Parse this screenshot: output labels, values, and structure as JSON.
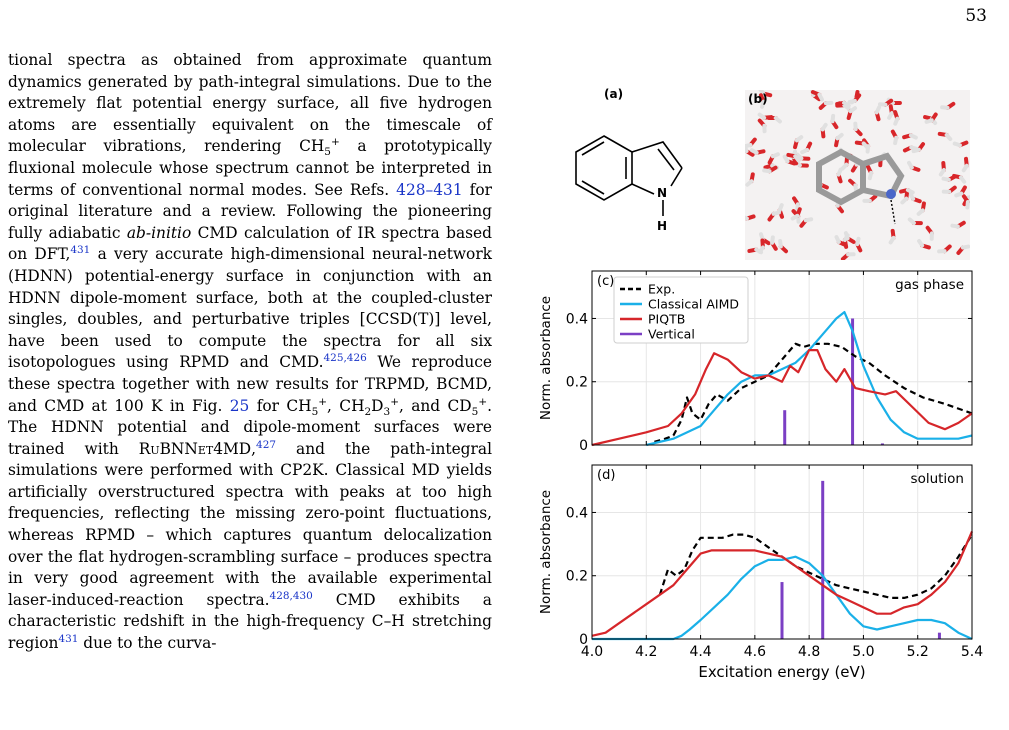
{
  "page_number": "53",
  "text": {
    "p1": "tional spectra as obtained from approximate quantum dynamics generated by path-integral simulations. Due to the extremely flat potential energy surface, all five hydrogen atoms are essentially equivalent on the timescale of molecular vibrations, rendering CH",
    "p1_sub": "5",
    "p1_sup": "+",
    "p2": " a prototypically fluxional molecule whose spectrum cannot be interpreted in terms of conventional normal modes. See Refs. ",
    "ref_a": "428–431",
    "p3": " for original literature and a review. Following the pioneering fully adiabatic ",
    "p3_italic": "ab-initio",
    "p4": " CMD calculation of IR spectra based on DFT,",
    "ref_b": "431",
    "p5": " a very accurate high-dimensional neural-network (HDNN) potential-energy surface in conjunction with an HDNN dipole-moment surface, both at the coupled-cluster singles, doubles, and perturbative triples [CCSD(T)] level, have been used to compute the spectra for all six isotopologues using RPMD and CMD.",
    "ref_c": "425,426",
    "p6": " We reproduce these spectra together with new results for TRPMD, BCMD, and CMD at 100 K in Fig. ",
    "ref_d": "25",
    "p7": " for CH",
    "p7_sub": "5",
    "p7_sup": "+",
    "p7b": ", CH",
    "p7b_sub1": "2",
    "p7b_mid": "D",
    "p7b_sub2": "3",
    "p7b_sup": "+",
    "p7c": ", and CD",
    "p7c_sub": "5",
    "p7c_sup": "+",
    "p8": ". The HDNN potential and dipole-moment surfaces were trained with ",
    "p8_sc": "RuBNNet4MD",
    "ref_e": "427",
    "p9": " and the path-integral simulations were performed with CP2K. Classical MD yields artificially overstructured spectra with peaks at too high frequencies, reflecting the missing zero-point fluctuations, whereas RPMD – which captures quantum delocalization over the flat hydrogen-scrambling surface – produces spectra in very good agreement with the available experimental laser-induced-reaction spectra.",
    "ref_f": "428,430",
    "p10": " CMD exhibits a characteristic redshift in the high-frequency C–H stretching region",
    "ref_g": "431",
    "p11": " due to the curva-"
  },
  "figure": {
    "panel_a_label": "(a)",
    "panel_b_label": "(b)",
    "atom_n": "N",
    "atom_h": "H"
  },
  "chart_data": [
    {
      "type": "line",
      "panel_label": "(c)",
      "annotation": "gas phase",
      "ylabel": "Norm. absorbance",
      "xlim": [
        4.0,
        5.4
      ],
      "ylim": [
        0,
        0.55
      ],
      "yticks": [
        "0",
        "0.2",
        "0.4"
      ],
      "grid": true,
      "legend_position": "top-left",
      "series": [
        {
          "name": "Exp.",
          "color": "#000000",
          "style": "dashed",
          "x": [
            4.23,
            4.27,
            4.3,
            4.33,
            4.35,
            4.37,
            4.4,
            4.43,
            4.46,
            4.5,
            4.55,
            4.6,
            4.65,
            4.7,
            4.73,
            4.75,
            4.78,
            4.82,
            4.87,
            4.92,
            4.97,
            5.02,
            5.08,
            5.15,
            5.22,
            5.3,
            5.4
          ],
          "y": [
            0.01,
            0.02,
            0.03,
            0.08,
            0.15,
            0.1,
            0.08,
            0.13,
            0.16,
            0.14,
            0.18,
            0.2,
            0.22,
            0.27,
            0.3,
            0.32,
            0.31,
            0.32,
            0.32,
            0.31,
            0.28,
            0.26,
            0.22,
            0.18,
            0.15,
            0.13,
            0.1
          ]
        },
        {
          "name": "Classical AIMD",
          "color": "#1ab0e8",
          "style": "solid",
          "x": [
            4.2,
            4.3,
            4.4,
            4.45,
            4.5,
            4.55,
            4.6,
            4.65,
            4.7,
            4.75,
            4.8,
            4.85,
            4.88,
            4.9,
            4.93,
            4.96,
            5.0,
            5.05,
            5.1,
            5.15,
            5.2,
            5.25,
            5.3,
            5.35,
            5.4
          ],
          "y": [
            0.0,
            0.02,
            0.06,
            0.11,
            0.16,
            0.2,
            0.22,
            0.22,
            0.24,
            0.26,
            0.3,
            0.35,
            0.38,
            0.4,
            0.42,
            0.36,
            0.25,
            0.15,
            0.08,
            0.04,
            0.02,
            0.02,
            0.02,
            0.02,
            0.03
          ]
        },
        {
          "name": "PIQTB",
          "color": "#d6262a",
          "style": "solid",
          "x": [
            4.0,
            4.1,
            4.2,
            4.28,
            4.33,
            4.38,
            4.42,
            4.45,
            4.5,
            4.55,
            4.6,
            4.65,
            4.7,
            4.73,
            4.76,
            4.8,
            4.83,
            4.86,
            4.9,
            4.93,
            4.97,
            5.02,
            5.08,
            5.12,
            5.18,
            5.24,
            5.3,
            5.35,
            5.4
          ],
          "y": [
            0.0,
            0.02,
            0.04,
            0.06,
            0.1,
            0.16,
            0.24,
            0.29,
            0.27,
            0.23,
            0.21,
            0.22,
            0.2,
            0.25,
            0.23,
            0.3,
            0.3,
            0.24,
            0.2,
            0.24,
            0.18,
            0.17,
            0.16,
            0.17,
            0.12,
            0.07,
            0.05,
            0.07,
            0.1
          ]
        }
      ],
      "verticals": {
        "name": "Vertical",
        "color": "#7b3fc4",
        "x": [
          4.71,
          4.96,
          5.07
        ],
        "y": [
          0.11,
          0.4,
          0.005
        ]
      }
    },
    {
      "type": "line",
      "panel_label": "(d)",
      "annotation": "solution",
      "ylabel": "Norm. absorbance",
      "xlabel": "Excitation energy (eV)",
      "xlim": [
        4.0,
        5.4
      ],
      "ylim": [
        0,
        0.55
      ],
      "xticks": [
        "4.0",
        "4.2",
        "4.4",
        "4.6",
        "4.8",
        "5.0",
        "5.2",
        "5.4"
      ],
      "yticks": [
        "0",
        "0.2",
        "0.4"
      ],
      "grid": true,
      "series": [
        {
          "name": "Exp.",
          "color": "#000000",
          "style": "dashed",
          "x": [
            4.25,
            4.28,
            4.31,
            4.34,
            4.37,
            4.4,
            4.44,
            4.48,
            4.52,
            4.56,
            4.6,
            4.65,
            4.7,
            4.75,
            4.8,
            4.85,
            4.9,
            4.95,
            5.0,
            5.05,
            5.1,
            5.15,
            5.2,
            5.25,
            5.3,
            5.35,
            5.4
          ],
          "y": [
            0.14,
            0.22,
            0.2,
            0.22,
            0.28,
            0.32,
            0.32,
            0.32,
            0.33,
            0.33,
            0.32,
            0.29,
            0.26,
            0.23,
            0.21,
            0.19,
            0.17,
            0.16,
            0.15,
            0.14,
            0.13,
            0.13,
            0.14,
            0.16,
            0.2,
            0.26,
            0.33
          ]
        },
        {
          "name": "Classical AIMD",
          "color": "#1ab0e8",
          "style": "solid",
          "x": [
            4.0,
            4.2,
            4.3,
            4.33,
            4.36,
            4.4,
            4.45,
            4.5,
            4.55,
            4.6,
            4.65,
            4.7,
            4.75,
            4.8,
            4.85,
            4.9,
            4.95,
            5.0,
            5.05,
            5.1,
            5.15,
            5.2,
            5.25,
            5.3,
            5.35,
            5.4
          ],
          "y": [
            0.0,
            0.0,
            0.0,
            0.01,
            0.03,
            0.06,
            0.1,
            0.14,
            0.19,
            0.23,
            0.25,
            0.25,
            0.26,
            0.24,
            0.2,
            0.14,
            0.08,
            0.04,
            0.03,
            0.04,
            0.05,
            0.06,
            0.06,
            0.05,
            0.02,
            0.0
          ]
        },
        {
          "name": "PIQTB",
          "color": "#d6262a",
          "style": "solid",
          "x": [
            4.0,
            4.05,
            4.1,
            4.15,
            4.2,
            4.25,
            4.3,
            4.35,
            4.4,
            4.44,
            4.48,
            4.52,
            4.56,
            4.6,
            4.65,
            4.7,
            4.75,
            4.8,
            4.85,
            4.9,
            4.95,
            5.0,
            5.05,
            5.1,
            5.15,
            5.2,
            5.25,
            5.3,
            5.35,
            5.4
          ],
          "y": [
            0.01,
            0.02,
            0.05,
            0.08,
            0.11,
            0.14,
            0.17,
            0.22,
            0.27,
            0.28,
            0.28,
            0.28,
            0.28,
            0.28,
            0.27,
            0.26,
            0.23,
            0.2,
            0.17,
            0.14,
            0.12,
            0.1,
            0.08,
            0.08,
            0.1,
            0.11,
            0.14,
            0.18,
            0.24,
            0.34
          ]
        }
      ],
      "verticals": {
        "name": "Vertical",
        "color": "#7b3fc4",
        "x": [
          4.7,
          4.85,
          5.28
        ],
        "y": [
          0.18,
          0.5,
          0.02
        ]
      }
    }
  ]
}
